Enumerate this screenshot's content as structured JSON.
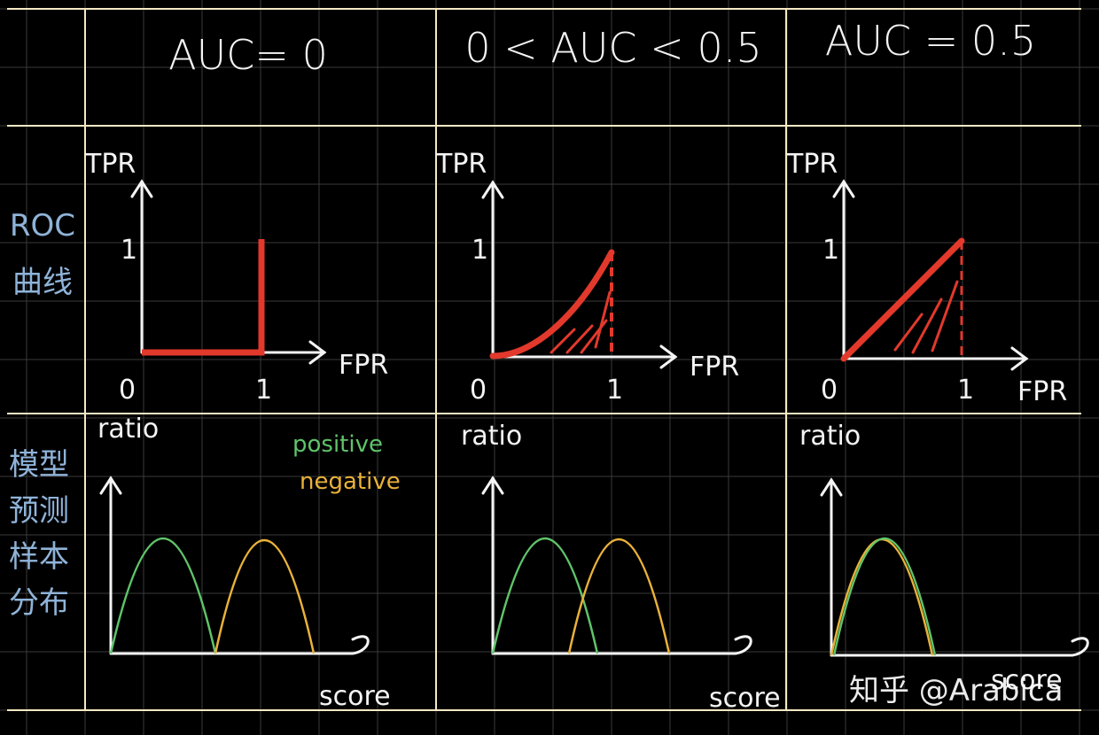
{
  "headers": [
    "AUC= 0",
    "0 < AUC < 0.5",
    "AUC = 0.5"
  ],
  "row_labels": {
    "roc": [
      "ROC",
      "曲线"
    ],
    "dist": [
      "模型",
      "预测",
      "样本",
      "分布"
    ]
  },
  "roc": {
    "y_axis": "TPR",
    "x_axis": "FPR",
    "origin": "0",
    "tick_one": "1"
  },
  "dist": {
    "y_axis": "ratio",
    "x_axis": "score",
    "legend": {
      "positive": "positive",
      "negative": "negative"
    }
  },
  "colors": {
    "background": "#000000",
    "grid": "#3a3a3a",
    "frame": "#f5e9c4",
    "roc_curve": "#e2392c",
    "positive": "#5fc46a",
    "negative": "#e9b23a",
    "row_label": "#8fb3d8"
  },
  "watermark": "知乎 @Arabica"
}
